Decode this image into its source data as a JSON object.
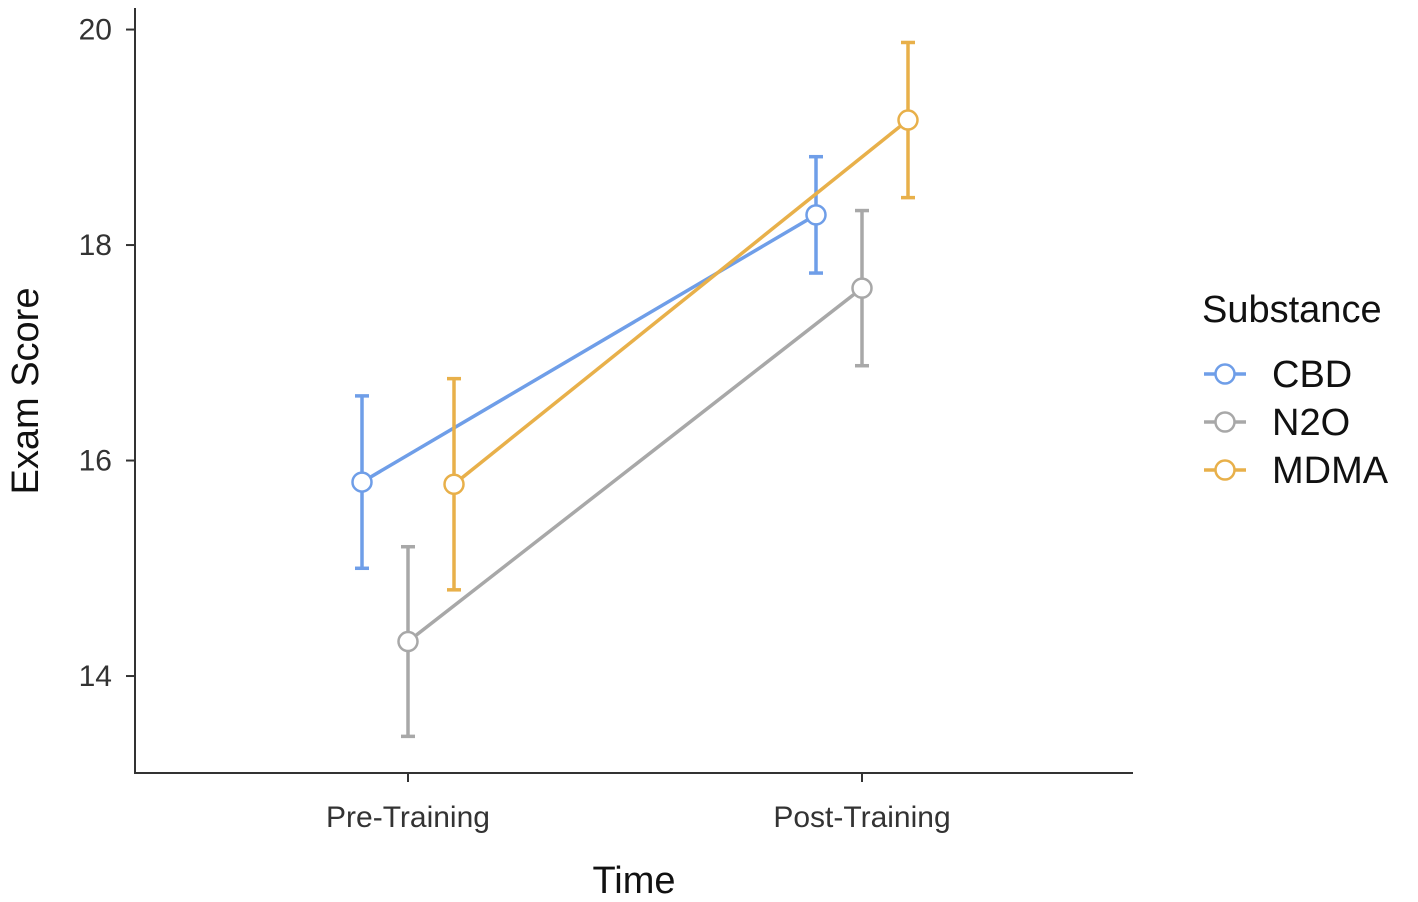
{
  "chart_data": {
    "type": "line",
    "title": "",
    "xlabel": "Time",
    "ylabel": "Exam Score",
    "categories": [
      "Pre-Training",
      "Post-Training"
    ],
    "ylim": [
      13.1,
      20.2
    ],
    "yticks": [
      14,
      16,
      18,
      20
    ],
    "grid": false,
    "legend": {
      "title": "Substance",
      "position": "right"
    },
    "series": [
      {
        "name": "CBD",
        "color": "#6f9ee8",
        "values": [
          15.8,
          18.28
        ],
        "lower": [
          15.0,
          17.74
        ],
        "upper": [
          16.6,
          18.82
        ]
      },
      {
        "name": "N2O",
        "color": "#a8a8a8",
        "values": [
          14.32,
          17.6
        ],
        "lower": [
          13.44,
          16.88
        ],
        "upper": [
          15.2,
          18.32
        ]
      },
      {
        "name": "MDMA",
        "color": "#e8b04a",
        "values": [
          15.78,
          19.16
        ],
        "lower": [
          14.8,
          18.44
        ],
        "upper": [
          16.76,
          19.88
        ]
      }
    ]
  }
}
